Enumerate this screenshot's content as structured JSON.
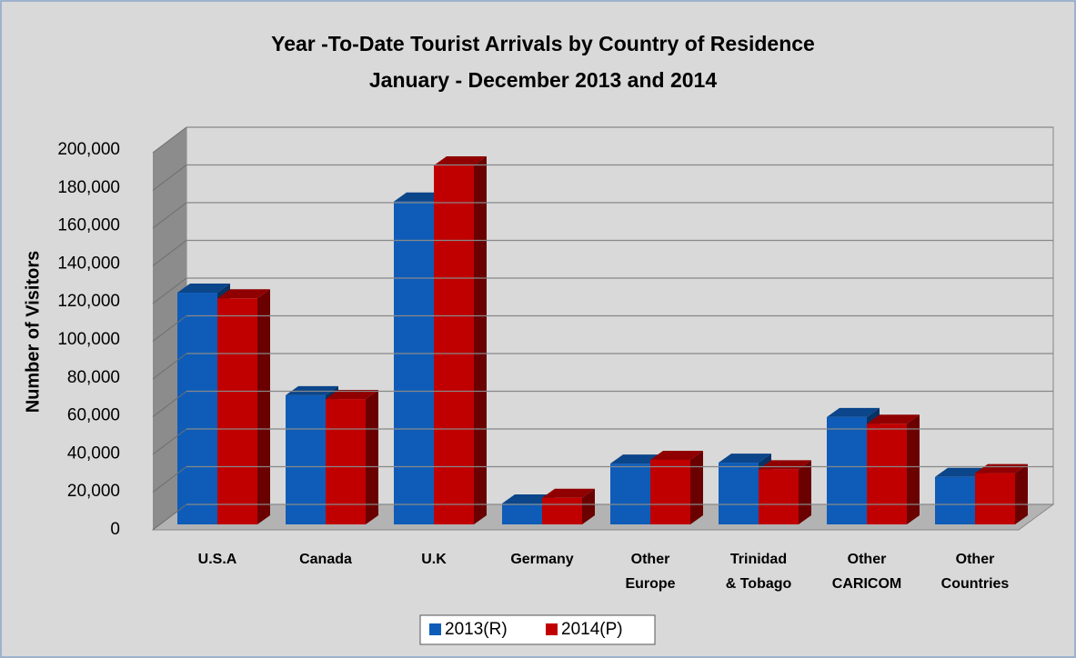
{
  "chart_data": {
    "type": "bar3d",
    "title": "Year -To-Date Tourist Arrivals by Country of Residence",
    "subtitle": "January - December 2013 and 2014",
    "ylabel": "Number of Visitors",
    "categories": [
      "U.S.A",
      "Canada",
      "U.K",
      "Germany",
      "Other Europe",
      "Trinidad & Tobago",
      "Other CARICOM",
      "Other Countries"
    ],
    "series": [
      {
        "name": "2013(R)",
        "color": "#0e5cb8",
        "values": [
          122000,
          68000,
          170000,
          11000,
          32000,
          32500,
          56500,
          25000
        ]
      },
      {
        "name": "2014(P)",
        "color": "#c00000",
        "values": [
          119000,
          66000,
          189000,
          14000,
          34000,
          29000,
          53000,
          27000
        ]
      }
    ],
    "ylim": [
      0,
      200000
    ],
    "yticks": [
      0,
      {
        "value": 20000,
        "label": "20,000"
      },
      {
        "value": 40000,
        "label": "40,000"
      },
      {
        "value": 60000,
        "label": "60,000"
      },
      {
        "value": 80000,
        "label": "80,000"
      },
      {
        "value": 100000,
        "label": "100,000"
      },
      {
        "value": 120000,
        "label": "120,000"
      },
      {
        "value": 140000,
        "label": "140,000"
      },
      {
        "value": 160000,
        "label": "160,000"
      },
      {
        "value": 180000,
        "label": "180,000"
      },
      {
        "value": 200000,
        "label": "200,000"
      }
    ],
    "grid": true,
    "legend": "bottom"
  }
}
